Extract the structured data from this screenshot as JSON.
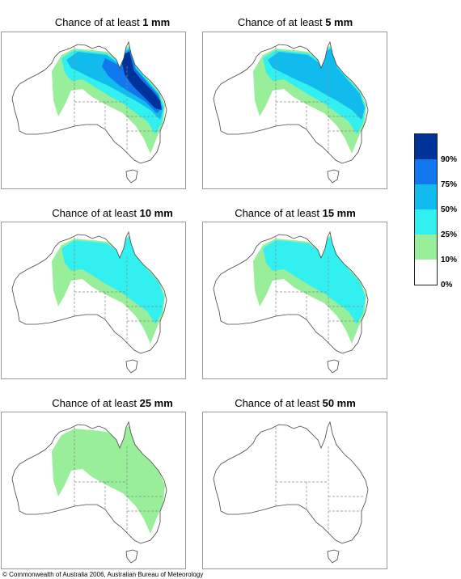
{
  "colors": {
    "c0": "#ffffff",
    "c10": "#99ee99",
    "c25": "#33f0f0",
    "c50": "#11bbee",
    "c75": "#1177ee",
    "c90": "#003399",
    "outline": "#444444",
    "border": "#888888"
  },
  "panels": [
    {
      "prefix": "Chance of at least ",
      "amount": "1 mm",
      "bands": [
        "c10",
        "c25",
        "c50",
        "c75",
        "c90"
      ]
    },
    {
      "prefix": "Chance of at least ",
      "amount": "5 mm",
      "bands": [
        "c10",
        "c25",
        "c50"
      ]
    },
    {
      "prefix": "Chance of at least ",
      "amount": "10 mm",
      "bands": [
        "c10",
        "c25"
      ]
    },
    {
      "prefix": "Chance of at least ",
      "amount": "15 mm",
      "bands": [
        "c10",
        "c25"
      ]
    },
    {
      "prefix": "Chance of at least ",
      "amount": "25 mm",
      "bands": [
        "c10"
      ]
    },
    {
      "prefix": "Chance of at least ",
      "amount": "50 mm",
      "bands": []
    }
  ],
  "legend": {
    "bands": [
      {
        "color_key": "c90",
        "label": "90%"
      },
      {
        "color_key": "c75",
        "label": "75%"
      },
      {
        "color_key": "c50",
        "label": "50%"
      },
      {
        "color_key": "c25",
        "label": "25%"
      },
      {
        "color_key": "c10",
        "label": "10%"
      },
      {
        "color_key": "c0",
        "label": "0%"
      }
    ]
  },
  "footer": {
    "copyright": "© Commonwealth of Australia 2006, Australian Bureau of Meteorology"
  }
}
